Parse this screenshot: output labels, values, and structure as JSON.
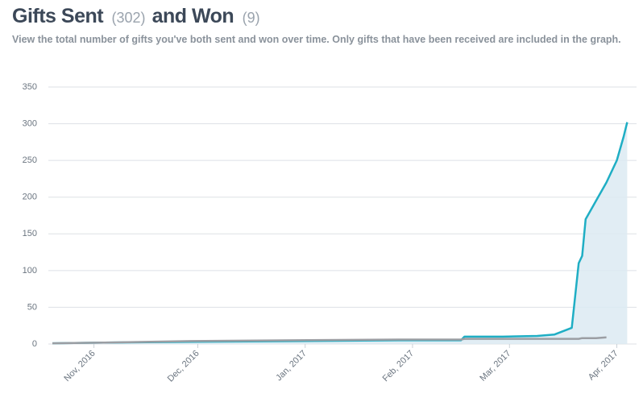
{
  "header": {
    "title_sent": "Gifts Sent",
    "sent_count": "(302)",
    "title_won": "and Won",
    "won_count": "(9)",
    "description": "View the total number of gifts you've both sent and won over time. Only gifts that have been received are included in the graph."
  },
  "chart_data": {
    "type": "line",
    "x": [
      0,
      15,
      40,
      70,
      100,
      118,
      119,
      130,
      140,
      145,
      150,
      152,
      153,
      154,
      157,
      160,
      163,
      165,
      166
    ],
    "series": [
      {
        "color": "#1faec4",
        "fill": "#dceaf2",
        "values": [
          1,
          2,
          3,
          4,
          5,
          5,
          10,
          10,
          11,
          13,
          22,
          110,
          120,
          170,
          195,
          220,
          250,
          283,
          302
        ]
      },
      {
        "color": "#9b9ea3",
        "values": [
          1,
          2,
          4,
          5,
          6,
          6,
          7,
          7,
          7,
          7,
          7,
          7,
          8,
          8,
          8,
          9,
          null,
          null,
          null
        ]
      }
    ],
    "xlim": [
      0,
      168
    ],
    "xticks": [
      {
        "value": 12,
        "label": "Nov, 2016"
      },
      {
        "value": 42,
        "label": "Dec, 2016"
      },
      {
        "value": 73,
        "label": "Jan, 2017"
      },
      {
        "value": 104,
        "label": "Feb, 2017"
      },
      {
        "value": 132,
        "label": "Mar, 2017"
      },
      {
        "value": 163,
        "label": "Apr, 2017"
      }
    ],
    "ylim": [
      0,
      350
    ],
    "yticks": [
      0,
      50,
      100,
      150,
      200,
      250,
      300,
      350
    ],
    "grid": true
  }
}
